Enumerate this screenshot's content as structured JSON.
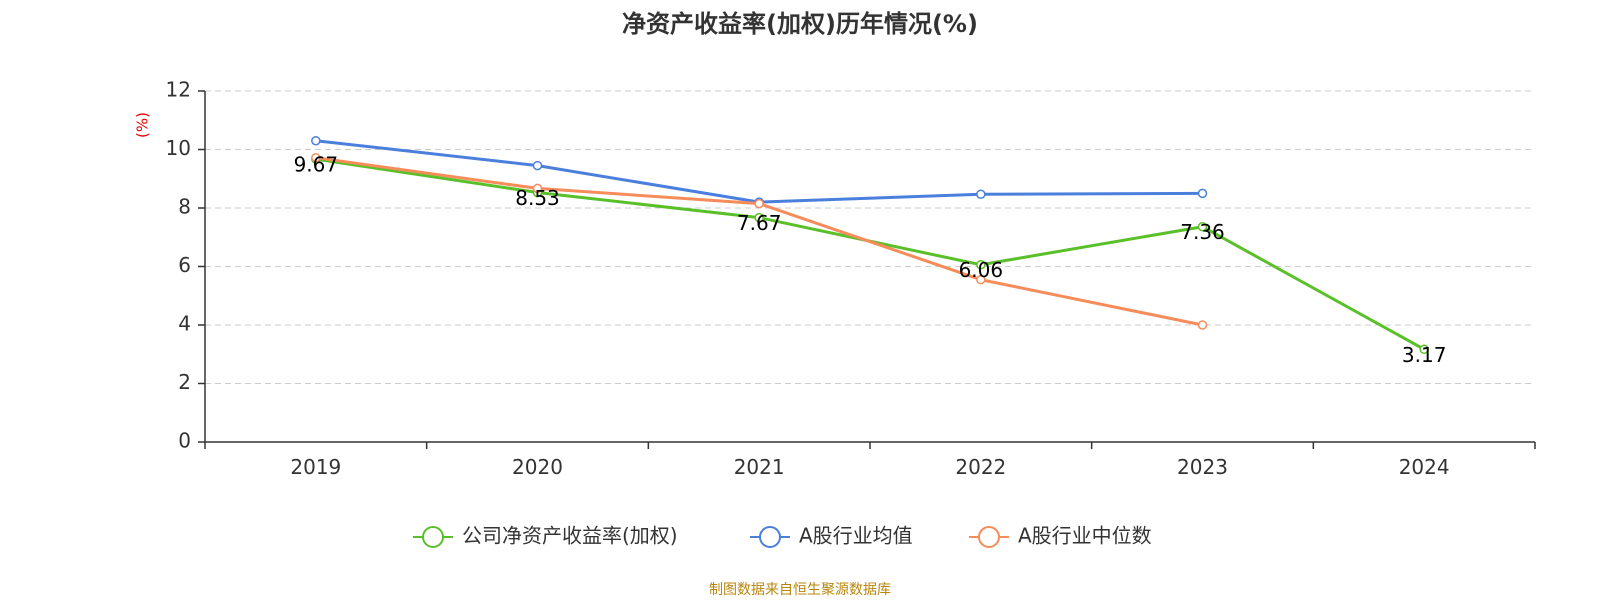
{
  "chart_data": {
    "type": "line",
    "title": "净资产收益率(加权)历年情况(%)",
    "ylabel": "(%)",
    "xlabel": "",
    "categories": [
      "2019",
      "2020",
      "2021",
      "2022",
      "2023",
      "2024"
    ],
    "ylim": [
      0,
      12
    ],
    "yticks": [
      0,
      2,
      4,
      6,
      8,
      10,
      12
    ],
    "grid": true,
    "legend_position": "bottom",
    "series": [
      {
        "name": "公司净资产收益率(加权)",
        "color": "#5ac02a",
        "values": [
          9.67,
          8.53,
          7.67,
          6.06,
          7.36,
          3.17
        ],
        "labels": [
          "9.67",
          "8.53",
          "7.67",
          "6.06",
          "7.36",
          "3.17"
        ]
      },
      {
        "name": "A股行业均值",
        "color": "#4a7fdc",
        "values": [
          10.3,
          9.45,
          8.2,
          8.47,
          8.5,
          null
        ]
      },
      {
        "name": "A股行业中位数",
        "color": "#f58c5a",
        "values": [
          9.72,
          8.67,
          8.15,
          5.55,
          4.0,
          null
        ]
      }
    ],
    "source": "制图数据来自恒生聚源数据库"
  }
}
